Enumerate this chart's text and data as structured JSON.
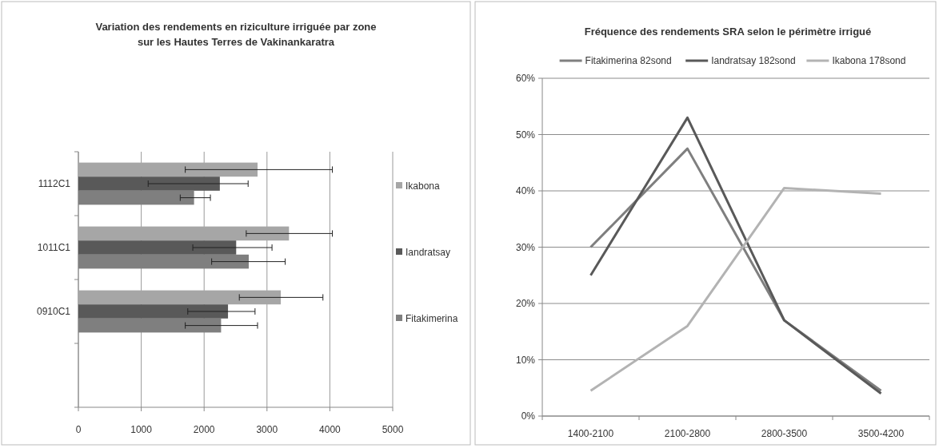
{
  "chart_data": [
    {
      "type": "bar",
      "orientation": "horizontal",
      "title": "Variation des rendements en  riziculture irriguée par zone\nsur les Hautes Terres de Vakinankaratra",
      "categories": [
        "1112C1",
        "1011C1",
        "0910C1",
        null
      ],
      "series": [
        {
          "name": "Ikabona",
          "color": "#a6a6a6",
          "values": [
            2850,
            3350,
            3220,
            null
          ],
          "errors": [
            [
              1700,
              4040
            ],
            [
              2670,
              4040
            ],
            [
              2560,
              3890
            ],
            null
          ]
        },
        {
          "name": "Iandratsay",
          "color": "#595959",
          "values": [
            2250,
            2510,
            2380,
            null
          ],
          "errors": [
            [
              1110,
              2700
            ],
            [
              1820,
              3080
            ],
            [
              1740,
              2810
            ],
            null
          ]
        },
        {
          "name": "Fitakimerina",
          "color": "#7f7f7f",
          "values": [
            1840,
            2710,
            2270,
            null
          ],
          "errors": [
            [
              1620,
              2100
            ],
            [
              2120,
              3290
            ],
            [
              1700,
              2850
            ],
            null
          ]
        }
      ],
      "xlim": [
        0,
        5000
      ],
      "xticks": [
        0,
        1000,
        2000,
        3000,
        4000,
        5000
      ],
      "grid": "x",
      "legend": "right"
    },
    {
      "type": "line",
      "title": "Fréquence des rendements SRA selon le périmètre irrigué",
      "categories": [
        "1400-2100",
        "2100-2800",
        "2800-3500",
        "3500-4200"
      ],
      "series": [
        {
          "name": "Fitakimerina 82sond",
          "color": "#7f7f7f",
          "values": [
            30,
            47.5,
            17,
            4.5
          ]
        },
        {
          "name": "Iandratsay 182sond",
          "color": "#595959",
          "values": [
            25,
            53,
            17,
            4
          ]
        },
        {
          "name": "Ikabona 178sond",
          "color": "#b3b3b3",
          "values": [
            4.5,
            16,
            40.5,
            39.5
          ]
        }
      ],
      "ylim": [
        0,
        60
      ],
      "yticks": [
        {
          "value": 0,
          "label": "0%"
        },
        {
          "value": 10,
          "label": "10%"
        },
        {
          "value": 20,
          "label": "20%"
        },
        {
          "value": 30,
          "label": "30%"
        },
        {
          "value": 40,
          "label": "40%"
        },
        {
          "value": 50,
          "label": "50%"
        },
        {
          "value": 60,
          "label": "60%"
        }
      ],
      "grid": "y",
      "legend": "top",
      "marker": "none",
      "line_style": "solid"
    }
  ]
}
